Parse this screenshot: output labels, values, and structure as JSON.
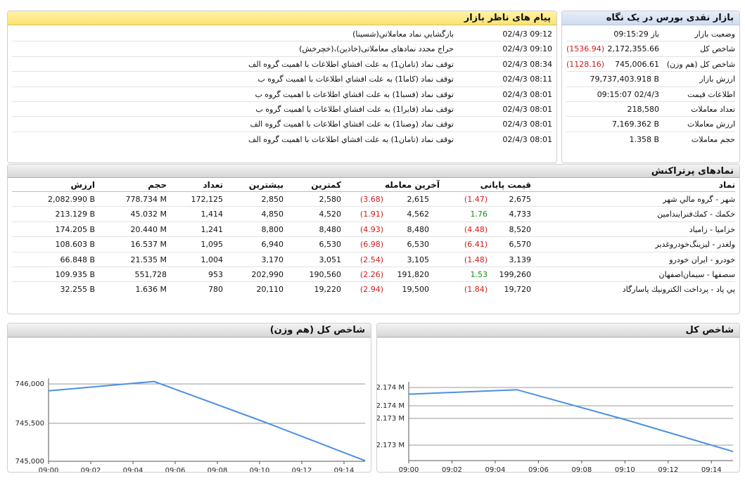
{
  "overview": {
    "title": "بازار نقدی بورس در یک نگاه",
    "rows": [
      {
        "label": "وضعیت بازار",
        "value": "باز 09:15:29",
        "change": ""
      },
      {
        "label": "شاخص کل",
        "value": "2,172,355.66",
        "change": "(1536.94)"
      },
      {
        "label": "شاخص کل (هم وزن)",
        "value": "745,006.61",
        "change": "(1128.16)"
      },
      {
        "label": "ارزش بازار",
        "value": "79,737,403.918 B",
        "change": ""
      },
      {
        "label": "اطلاعات قیمت",
        "value": "09:15:07 02/4/3",
        "change": ""
      },
      {
        "label": "تعداد معاملات",
        "value": "218,580",
        "change": ""
      },
      {
        "label": "ارزش معاملات",
        "value": "7,169.362 B",
        "change": ""
      },
      {
        "label": "حجم معاملات",
        "value": "1.358 B",
        "change": ""
      }
    ]
  },
  "messages": {
    "title": "پیام های ناظر بازار",
    "rows": [
      {
        "time": "02/4/3 09:12",
        "text": "بازگشايي نماد معاملاتي(شسينا)"
      },
      {
        "time": "02/4/3 09:10",
        "text": "حراج مجدد نمادهای معاملاتی(خاذین)،(خچرخش)"
      },
      {
        "time": "02/4/3 08:34",
        "text": "توقف نماد (تامان1) به علت افشاي اطلاعات با اهميت گروه الف"
      },
      {
        "time": "02/4/3 08:11",
        "text": "توقف نماد (کاما1) به علت افشاي اطلاعات با اهميت گروه ب"
      },
      {
        "time": "02/4/3 08:01",
        "text": "توقف نماد (فسبا1) به علت افشاي اطلاعات با اهميت گروه ب"
      },
      {
        "time": "02/4/3 08:01",
        "text": "توقف نماد (فابرا1) به علت افشاي اطلاعات با اهميت گروه ب"
      },
      {
        "time": "02/4/3 08:01",
        "text": "توقف نماد (وصنا1) به علت افشاي اطلاعات با اهميت گروه الف"
      },
      {
        "time": "02/4/3 08:01",
        "text": "توقف نماد (تامان1) به علت افشاي اطلاعات با اهميت گروه الف"
      }
    ]
  },
  "top_symbols": {
    "title": "نمادهای پرتراکنش",
    "headers": {
      "symbol": "نماد",
      "close": "قیمت پایانی",
      "last": "آخرین معامله",
      "low": "کمترین",
      "high": "بیشترین",
      "count": "تعداد",
      "volume": "حجم",
      "value": "ارزش"
    },
    "rows": [
      {
        "symbol": "شهر - گروه مالي شهر",
        "close": "2,675",
        "close_change": "(1.47)",
        "last": "2,615",
        "last_change": "(3.68)",
        "low": "2,580",
        "high": "2,850",
        "count": "172,125",
        "volume": "778.734 M",
        "value": "2,082.990 B"
      },
      {
        "symbol": "خکمك - کمك‌فنرايندامين",
        "close": "4,733",
        "close_change": "1.76",
        "last": "4,562",
        "last_change": "(1.91)",
        "low": "4,520",
        "high": "4,850",
        "count": "1,414",
        "volume": "45.032 M",
        "value": "213.129 B"
      },
      {
        "symbol": "خزاميا - زامياد",
        "close": "8,520",
        "close_change": "(4.48)",
        "last": "8,480",
        "last_change": "(4.93)",
        "low": "8,480",
        "high": "8,800",
        "count": "1,241",
        "volume": "20.440 M",
        "value": "174.205 B"
      },
      {
        "symbol": "ولغدر - ليزينگ‌خودروغدير",
        "close": "6,570",
        "close_change": "(6.41)",
        "last": "6,530",
        "last_change": "(6.98)",
        "low": "6,530",
        "high": "6,940",
        "count": "1,095",
        "volume": "16.537 M",
        "value": "108.603 B"
      },
      {
        "symbol": "خودرو - ايران‌ خودرو",
        "close": "3,139",
        "close_change": "(1.48)",
        "last": "3,105",
        "last_change": "(2.54)",
        "low": "3,051",
        "high": "3,170",
        "count": "1,004",
        "volume": "21.535 M",
        "value": "66.848 B"
      },
      {
        "symbol": "سصفها - سيمان‌اصفهان",
        "close": "199,260",
        "close_change": "1.53",
        "last": "191,820",
        "last_change": "(2.26)",
        "low": "190,560",
        "high": "202,990",
        "count": "953",
        "volume": "551,728",
        "value": "109.935 B"
      },
      {
        "symbol": "پي پاد - پرداخت الكترونيك پاسارگاد",
        "close": "19,720",
        "close_change": "(1.84)",
        "last": "19,500",
        "last_change": "(2.94)",
        "low": "19,220",
        "high": "20,110",
        "count": "780",
        "volume": "1.636 M",
        "value": "32.255 B"
      }
    ]
  },
  "charts": {
    "equal_weight": {
      "title": "شاخص کل (هم وزن)"
    },
    "total": {
      "title": "شاخص کل"
    }
  },
  "colors": {
    "line": "#4a90e2",
    "negative": "#d11a1a",
    "positive": "#109010"
  },
  "chart_data": [
    {
      "type": "line",
      "title": "شاخص کل (هم وزن)",
      "xlabel": "",
      "ylabel": "",
      "x_ticks": [
        "09:00",
        "09:02",
        "09:04",
        "09:06",
        "09:08",
        "09:10",
        "09:12",
        "09:14"
      ],
      "y_ticks": [
        "746,000",
        "745,500",
        "745,000"
      ],
      "xlim": [
        "09:00",
        "09:15"
      ],
      "ylim": [
        744990,
        746230
      ],
      "grid": true,
      "series": [
        {
          "x": [
            "09:00",
            "09:05",
            "09:10",
            "09:15"
          ],
          "y": [
            746120,
            746270,
            745650,
            745000
          ]
        }
      ]
    },
    {
      "type": "line",
      "title": "شاخص کل",
      "xlabel": "",
      "ylabel": "",
      "x_ticks": [
        "09:00",
        "09:02",
        "09:04",
        "09:06",
        "09:08",
        "09:10",
        "09:12",
        "09:14"
      ],
      "y_ticks": [
        "2.174 M",
        "2.174 M",
        "2.173 M",
        "2.173 M"
      ],
      "xlim": [
        "09:00",
        "09:15"
      ],
      "ylim": [
        2172120,
        2174060
      ],
      "grid": true,
      "series": [
        {
          "x": [
            "09:00",
            "09:05",
            "09:10",
            "09:15"
          ],
          "y": [
            2173880,
            2174000,
            2173210,
            2172360
          ]
        }
      ]
    }
  ]
}
